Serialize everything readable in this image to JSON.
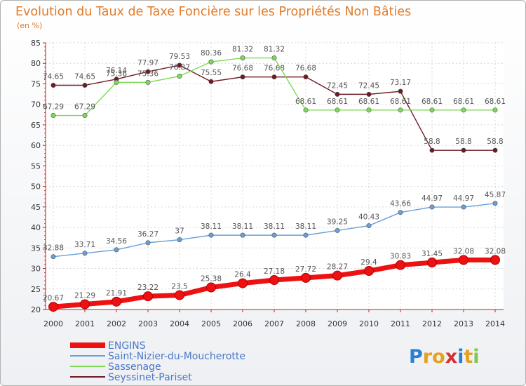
{
  "chart_data": {
    "type": "line",
    "title": "Evolution du Taux de Taxe Foncière sur les Propriétés Non Bâties",
    "subtitle": "(en %)",
    "x": [
      "2000",
      "2001",
      "2002",
      "2003",
      "2004",
      "2005",
      "2006",
      "2007",
      "2008",
      "2009",
      "2010",
      "2011",
      "2012",
      "2013",
      "2014"
    ],
    "y_ticks": [
      "20",
      "25",
      "30",
      "35",
      "40",
      "45",
      "50",
      "55",
      "60",
      "65",
      "70",
      "75",
      "80",
      "85"
    ],
    "ylim": [
      20,
      85
    ],
    "grid": true,
    "legend_position": "bottom-left",
    "series": [
      {
        "name": "Seyssinet-Pariset",
        "color": "#6e1a23",
        "values": [
          74.65,
          74.65,
          76.14,
          77.97,
          79.53,
          75.55,
          76.68,
          76.68,
          76.68,
          72.45,
          72.45,
          73.17,
          58.8,
          58.8,
          58.8
        ],
        "labels": [
          "74.65",
          "74.65",
          "76.14",
          "77.97",
          "79.53",
          "75.55",
          "76.68",
          "76.68",
          "76.68",
          "72.45",
          "72.45",
          "73.17",
          "58.8",
          "58.8",
          "58.8"
        ]
      },
      {
        "name": "Sassenage",
        "color": "#7ed957",
        "values": [
          67.29,
          67.29,
          75.36,
          75.36,
          76.87,
          80.36,
          81.32,
          81.32,
          68.61,
          68.61,
          68.61,
          68.61,
          68.61,
          68.61,
          68.61
        ],
        "labels": [
          "67.29",
          "67.29",
          "75.36",
          "75.36",
          "76.87",
          "80.36",
          "81.32",
          "81.32",
          "68.61",
          "68.61",
          "68.61",
          "68.61",
          "68.61",
          "68.61",
          "68.61"
        ]
      },
      {
        "name": "Saint-Nizier-du-Moucherotte",
        "color": "#6a9fd8",
        "values": [
          32.88,
          33.71,
          34.56,
          36.27,
          37,
          38.11,
          38.11,
          38.11,
          38.11,
          39.25,
          40.43,
          43.66,
          44.97,
          44.97,
          45.87
        ],
        "labels": [
          "32.88",
          "33.71",
          "34.56",
          "36.27",
          "37",
          "38.11",
          "38.11",
          "38.11",
          "38.11",
          "39.25",
          "40.43",
          "43.66",
          "44.97",
          "44.97",
          "45.87"
        ]
      },
      {
        "name": "ENGINS",
        "color": "#ee1111",
        "values": [
          20.67,
          21.29,
          21.91,
          23.22,
          23.5,
          25.38,
          26.4,
          27.18,
          27.72,
          28.27,
          29.4,
          30.83,
          31.45,
          32.08,
          32.08
        ],
        "labels": [
          "20.67",
          "21.29",
          "21.91",
          "23.22",
          "23.5",
          "25.38",
          "26.4",
          "27.18",
          "27.72",
          "28.27",
          "29.4",
          "30.83",
          "31.45",
          "32.08",
          "32.08"
        ]
      }
    ]
  },
  "legend": [
    "ENGINS",
    "Saint-Nizier-du-Moucherotte",
    "Sassenage",
    "Seyssinet-Pariset"
  ],
  "brand": {
    "letters": [
      "P",
      "r",
      "o",
      "x",
      "i",
      "t",
      "i"
    ]
  }
}
